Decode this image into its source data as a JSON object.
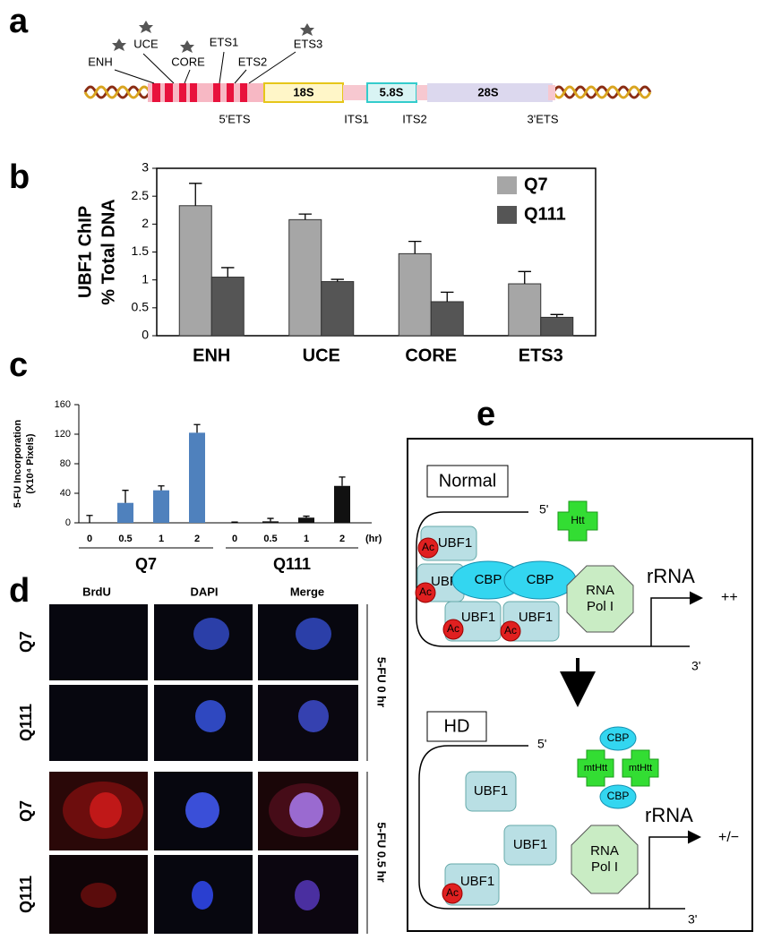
{
  "panel_labels": [
    "a",
    "b",
    "c",
    "d",
    "e"
  ],
  "gene_map": {
    "markers": [
      "ENH",
      "UCE",
      "CORE",
      "ETS1",
      "ETS2",
      "ETS3"
    ],
    "regions": [
      "18S",
      "5.8S",
      "28S"
    ],
    "spacers": [
      "5'ETS",
      "ITS1",
      "ITS2",
      "3'ETS"
    ]
  },
  "chart_data": [
    {
      "type": "bar",
      "ylabel": [
        "UBF1 ChIP",
        "% Total DNA"
      ],
      "categories": [
        "ENH",
        "UCE",
        "CORE",
        "ETS3"
      ],
      "series": [
        {
          "name": "Q7",
          "color": "#a6a6a6",
          "values": [
            2.33,
            2.08,
            1.47,
            0.93
          ],
          "errors": [
            0.4,
            0.1,
            0.22,
            0.22
          ]
        },
        {
          "name": "Q111",
          "color": "#555555",
          "values": [
            1.05,
            0.97,
            0.61,
            0.33
          ],
          "errors": [
            0.17,
            0.04,
            0.17,
            0.05
          ]
        }
      ],
      "ylim": [
        0,
        3
      ],
      "yticks": [
        0,
        0.5,
        1,
        1.5,
        2,
        2.5,
        3
      ]
    },
    {
      "type": "bar",
      "ylabel": [
        "5-FU Incorporation",
        "(X10⁴ Pixels)"
      ],
      "categories": [
        "0",
        "0.5",
        "1",
        "2"
      ],
      "x_unit": "(hr)",
      "series": [
        {
          "name": "Q7",
          "color": "#4f81bd",
          "values": [
            0,
            27,
            44,
            122
          ],
          "errors": [
            10,
            17,
            6,
            11
          ]
        },
        {
          "name": "Q111",
          "color": "#111111",
          "values": [
            0,
            2,
            7,
            50
          ],
          "errors": [
            1,
            4,
            2,
            12
          ]
        }
      ],
      "ylim": [
        0,
        160
      ],
      "yticks": [
        0,
        40,
        80,
        120,
        160
      ]
    }
  ],
  "microscopy": {
    "columns": [
      "BrdU",
      "DAPI",
      "Merge"
    ],
    "rows": [
      "Q7",
      "Q111",
      "Q7",
      "Q111"
    ],
    "conditions": [
      "5-FU 0 hr",
      "5-FU 0.5 hr"
    ]
  },
  "schematic": {
    "normal": {
      "title": "Normal",
      "five_prime": "5'",
      "three_prime": "3'",
      "htt": "Htt",
      "ac": [
        "Ac",
        "Ac",
        "Ac",
        "Ac"
      ],
      "ubf": [
        "UBF1",
        "UBF",
        "UBF1",
        "UBF1"
      ],
      "cbp": [
        "CBP",
        "CBP"
      ],
      "pol": [
        "RNA",
        "Pol I"
      ],
      "rrna": "rRNA",
      "level": "++"
    },
    "hd": {
      "title": "HD",
      "five_prime": "5'",
      "three_prime": "3'",
      "mthtt": [
        "mtHtt",
        "mtHtt"
      ],
      "cbp": [
        "CBP",
        "CBP"
      ],
      "ac": [
        "Ac"
      ],
      "ubf": [
        "UBF1",
        "UBF1",
        "UBF1"
      ],
      "pol": [
        "RNA",
        "Pol I"
      ],
      "rrna": "rRNA",
      "level": "+/−"
    }
  }
}
